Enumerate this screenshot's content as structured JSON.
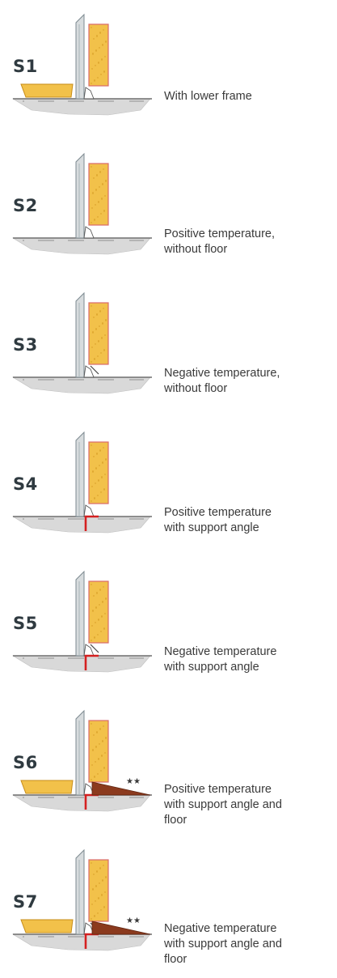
{
  "sections": [
    {
      "id": "S1",
      "description": "With lower frame",
      "variant": "lower-frame"
    },
    {
      "id": "S2",
      "description": "Positive temperature,\nwithout floor",
      "variant": "positive"
    },
    {
      "id": "S3",
      "description": "Negative temperature,\nwithout floor",
      "variant": "negative"
    },
    {
      "id": "S4",
      "description": "Positive temperature\nwith support angle",
      "variant": "positive-angle"
    },
    {
      "id": "S5",
      "description": "Negative temperature\nwith support angle",
      "variant": "negative-angle"
    },
    {
      "id": "S6",
      "description": "Positive temperature\nwith support angle and\nfloor",
      "variant": "positive-angle-floor",
      "mark": "★★"
    },
    {
      "id": "S7",
      "description": "Negative temperature\nwith support angle and\nfloor",
      "variant": "negative-angle-floor",
      "mark": "★★"
    }
  ],
  "colors": {
    "label": "#2f3a40",
    "text": "#3a3a3a",
    "panel_fill": "#f2c14a",
    "panel_edge": "#d96a6a",
    "frame_fill": "#d8dcde",
    "frame_edge": "#7d8a90",
    "ground": "#d9d9d9",
    "floor_brown": "#8b3a1e",
    "angle_red": "#d42020"
  }
}
